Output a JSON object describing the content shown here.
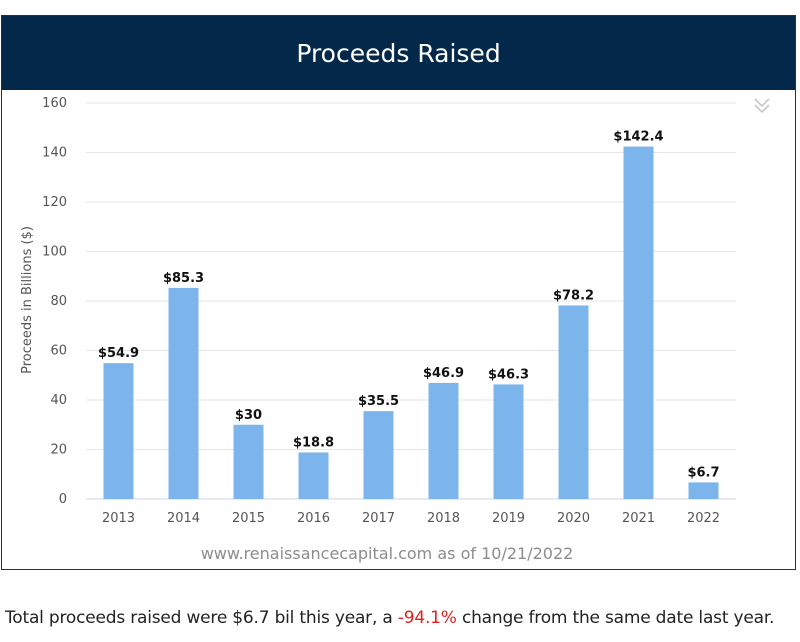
{
  "header": {
    "title": "Proceeds Raised"
  },
  "credit": "www.renaissancecapital.com as of 10/21/2022",
  "summary": {
    "prefix": "Total proceeds raised were $6.7 bil this year, a ",
    "change": "-94.1%",
    "suffix": " change from the same date last year."
  },
  "colors": {
    "header_bg": "#03284a",
    "bar": "#7cb5ec",
    "change_text": "#e02020"
  },
  "menu_icon": "double-chevron-down-icon",
  "chart_data": {
    "type": "bar",
    "categories": [
      "2013",
      "2014",
      "2015",
      "2016",
      "2017",
      "2018",
      "2019",
      "2020",
      "2021",
      "2022"
    ],
    "values": [
      54.9,
      85.3,
      30,
      18.8,
      35.5,
      46.9,
      46.3,
      78.2,
      142.4,
      6.7
    ],
    "data_labels": [
      "$54.9",
      "$85.3",
      "$30",
      "$18.8",
      "$35.5",
      "$46.9",
      "$46.3",
      "$78.2",
      "$142.4",
      "$6.7"
    ],
    "title": "Proceeds Raised",
    "xlabel": "",
    "ylabel": "Proceeds in Billions ($)",
    "ylim": [
      0,
      160
    ],
    "yticks": [
      0,
      20,
      40,
      60,
      80,
      100,
      120,
      140,
      160
    ],
    "grid": true,
    "legend": "none"
  }
}
